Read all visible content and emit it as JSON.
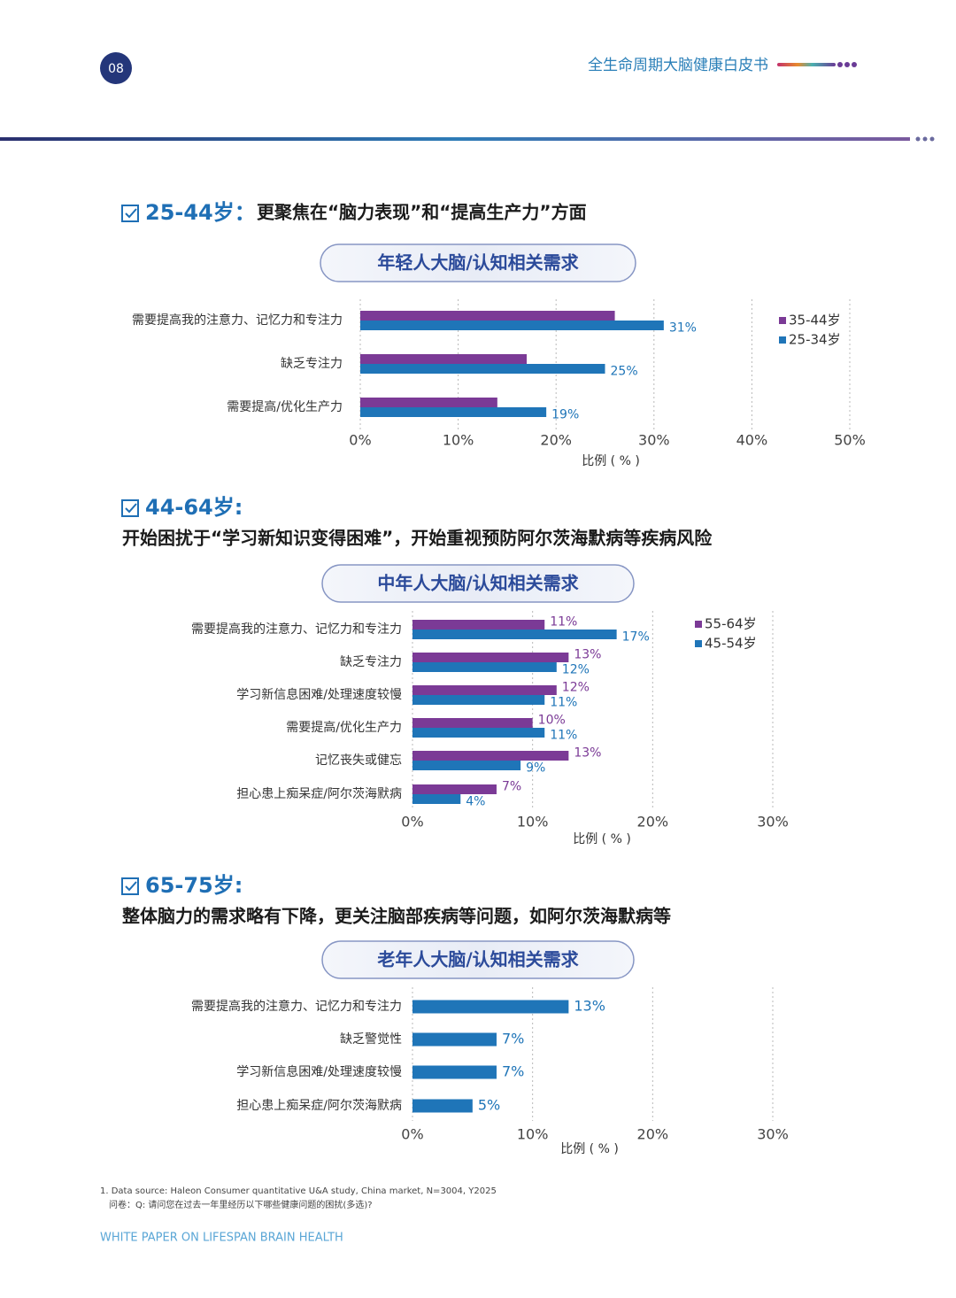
{
  "header": {
    "page_number": "08",
    "title": "全生命周期大脑健康白皮书"
  },
  "sections": [
    {
      "heading_age": "25-44岁：",
      "heading_text": "更聚焦在“脑力表现”和“提高生产力”方面"
    },
    {
      "heading_age": "44-64岁:",
      "subtitle": "开始困扰于“学习新知识变得困难”，开始重视预防阿尔茨海默病等疾病风险"
    },
    {
      "heading_age": "65-75岁:",
      "subtitle": "整体脑力的需求略有下降，更关注脑部疾病等问题，如阿尔茨海默病等"
    }
  ],
  "chart_data": [
    {
      "type": "barh",
      "title": "年轻人大脑/认知相关需求",
      "x_label": "比例 ( % )",
      "categories": [
        "需要提高我的注意力、记忆力和专注力",
        "缺乏专注力",
        "需要提高/优化生产力"
      ],
      "series": [
        {
          "name": "35-44岁",
          "color": "#7b3a96",
          "values": [
            26,
            17,
            14
          ]
        },
        {
          "name": "25-34岁",
          "color": "#1f75b8",
          "values": [
            31,
            25,
            19
          ],
          "value_labels": [
            "31%",
            "25%",
            "19%"
          ]
        }
      ],
      "xlim": [
        0,
        50
      ],
      "xticks": [
        {
          "value": 0,
          "label": "0%"
        },
        {
          "value": 10,
          "label": "10%"
        },
        {
          "value": 20,
          "label": "20%"
        },
        {
          "value": 30,
          "label": "30%"
        },
        {
          "value": 40,
          "label": "40%"
        },
        {
          "value": 50,
          "label": "50%"
        }
      ],
      "grid": true,
      "legend": "upper right"
    },
    {
      "type": "barh",
      "title": "中年人大脑/认知相关需求",
      "x_label": "比例 ( % )",
      "categories": [
        "需要提高我的注意力、记忆力和专注力",
        "缺乏专注力",
        "学习新信息困难/处理速度较慢",
        "需要提高/优化生产力",
        "记忆丧失或健忘",
        "担心患上痴呆症/阿尔茨海默病"
      ],
      "series": [
        {
          "name": "55-64岁",
          "color": "#7b3a96",
          "values": [
            11,
            13,
            12,
            10,
            13,
            7
          ],
          "value_labels": [
            "11%",
            "13%",
            "12%",
            "10%",
            "13%",
            "7%"
          ]
        },
        {
          "name": "45-54岁",
          "color": "#1f75b8",
          "values": [
            17,
            12,
            11,
            11,
            9,
            4
          ],
          "value_labels": [
            "17%",
            "12%",
            "11%",
            "11%",
            "9%",
            "4%"
          ]
        }
      ],
      "xlim": [
        0,
        30
      ],
      "xticks": [
        {
          "value": 0,
          "label": "0%"
        },
        {
          "value": 10,
          "label": "10%"
        },
        {
          "value": 20,
          "label": "20%"
        },
        {
          "value": 30,
          "label": "30%"
        }
      ],
      "grid": true,
      "legend": "upper right"
    },
    {
      "type": "barh",
      "title": "老年人大脑/认知相关需求",
      "x_label": "比例 ( % )",
      "categories": [
        "需要提高我的注意力、记忆力和专注力",
        "缺乏警觉性",
        "学习新信息困难/处理速度较慢",
        "担心患上痴呆症/阿尔茨海默病"
      ],
      "values": [
        13,
        7,
        7,
        5
      ],
      "value_labels": [
        "13%",
        "7%",
        "7%",
        "5%"
      ],
      "color": "#1f75b8",
      "xlim": [
        0,
        30
      ],
      "xticks": [
        {
          "value": 0,
          "label": "0%"
        },
        {
          "value": 10,
          "label": "10%"
        },
        {
          "value": 20,
          "label": "20%"
        },
        {
          "value": 30,
          "label": "30%"
        }
      ],
      "grid": true
    }
  ],
  "footnote": {
    "source": "1. Data source: Haleon Consumer quantitative U&A study, China market, N=3004, Y2025",
    "question": "问卷：Q: 请问您在过去一年里经历以下哪些健康问题的困扰(多选)?"
  },
  "footer": "WHITE PAPER ON LIFESPAN BRAIN HEALTH"
}
